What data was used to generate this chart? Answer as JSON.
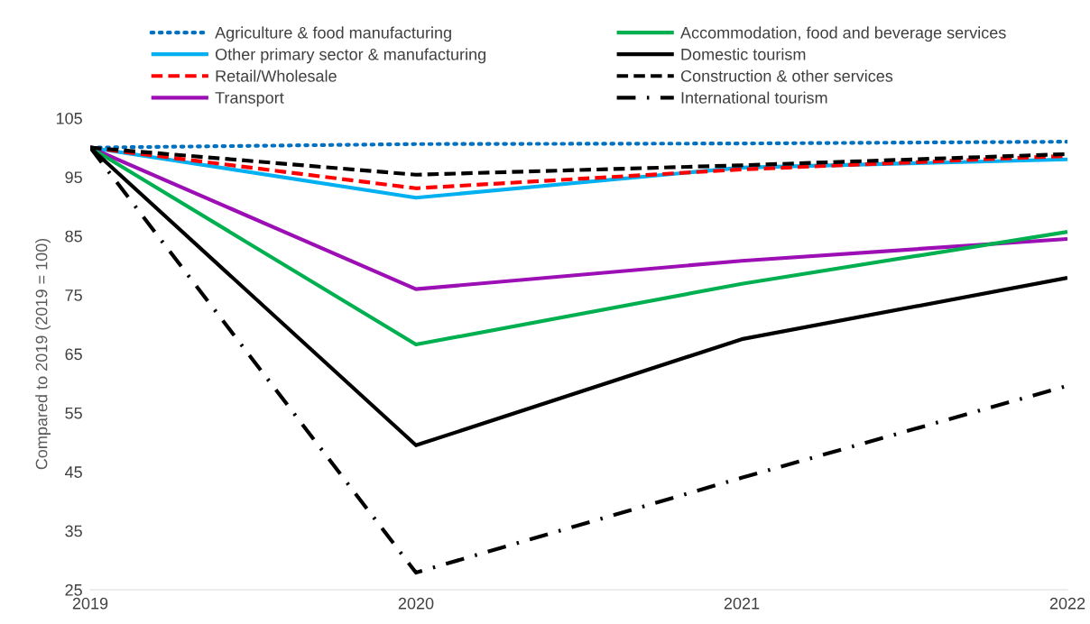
{
  "chart_data": {
    "type": "line",
    "ylabel": "Compared to 2019 (2019 = 100)",
    "x": [
      2019,
      2020,
      2021,
      2022
    ],
    "xlim": [
      2019,
      2022
    ],
    "xticks": [
      2019,
      2020,
      2021,
      2022
    ],
    "ylim": [
      25,
      105
    ],
    "yticks": [
      25,
      35,
      45,
      55,
      65,
      75,
      85,
      95,
      105
    ],
    "grid": false,
    "legend": "top",
    "marker": "none",
    "series": [
      {
        "name": "Agriculture & food manufacturing",
        "color": "#0070c0",
        "line_style": "dotted",
        "values": [
          100,
          100.6,
          100.7,
          101.0
        ]
      },
      {
        "name": "Other primary sector & manufacturing",
        "color": "#00b0f0",
        "line_style": "solid",
        "values": [
          100,
          91.5,
          96.6,
          98.0
        ]
      },
      {
        "name": "Retail/Wholesale",
        "color": "#ff0000",
        "line_style": "dashed",
        "values": [
          100,
          93.1,
          96.3,
          98.6
        ]
      },
      {
        "name": "Transport",
        "color": "#9c0fb4",
        "line_style": "solid",
        "values": [
          100,
          76.0,
          80.8,
          84.5
        ]
      },
      {
        "name": "Accommodation, food and beverage services",
        "color": "#00b050",
        "line_style": "solid",
        "values": [
          100,
          66.6,
          76.9,
          85.7
        ]
      },
      {
        "name": "Domestic tourism",
        "color": "#000000",
        "line_style": "solid",
        "values": [
          100,
          49.5,
          67.5,
          77.9
        ]
      },
      {
        "name": "Construction & other services",
        "color": "#000000",
        "line_style": "dashed",
        "values": [
          100,
          95.4,
          97.0,
          98.9
        ]
      },
      {
        "name": "International tourism",
        "color": "#000000",
        "line_style": "dashdot",
        "values": [
          100,
          27.9,
          44.0,
          59.6
        ]
      }
    ]
  }
}
